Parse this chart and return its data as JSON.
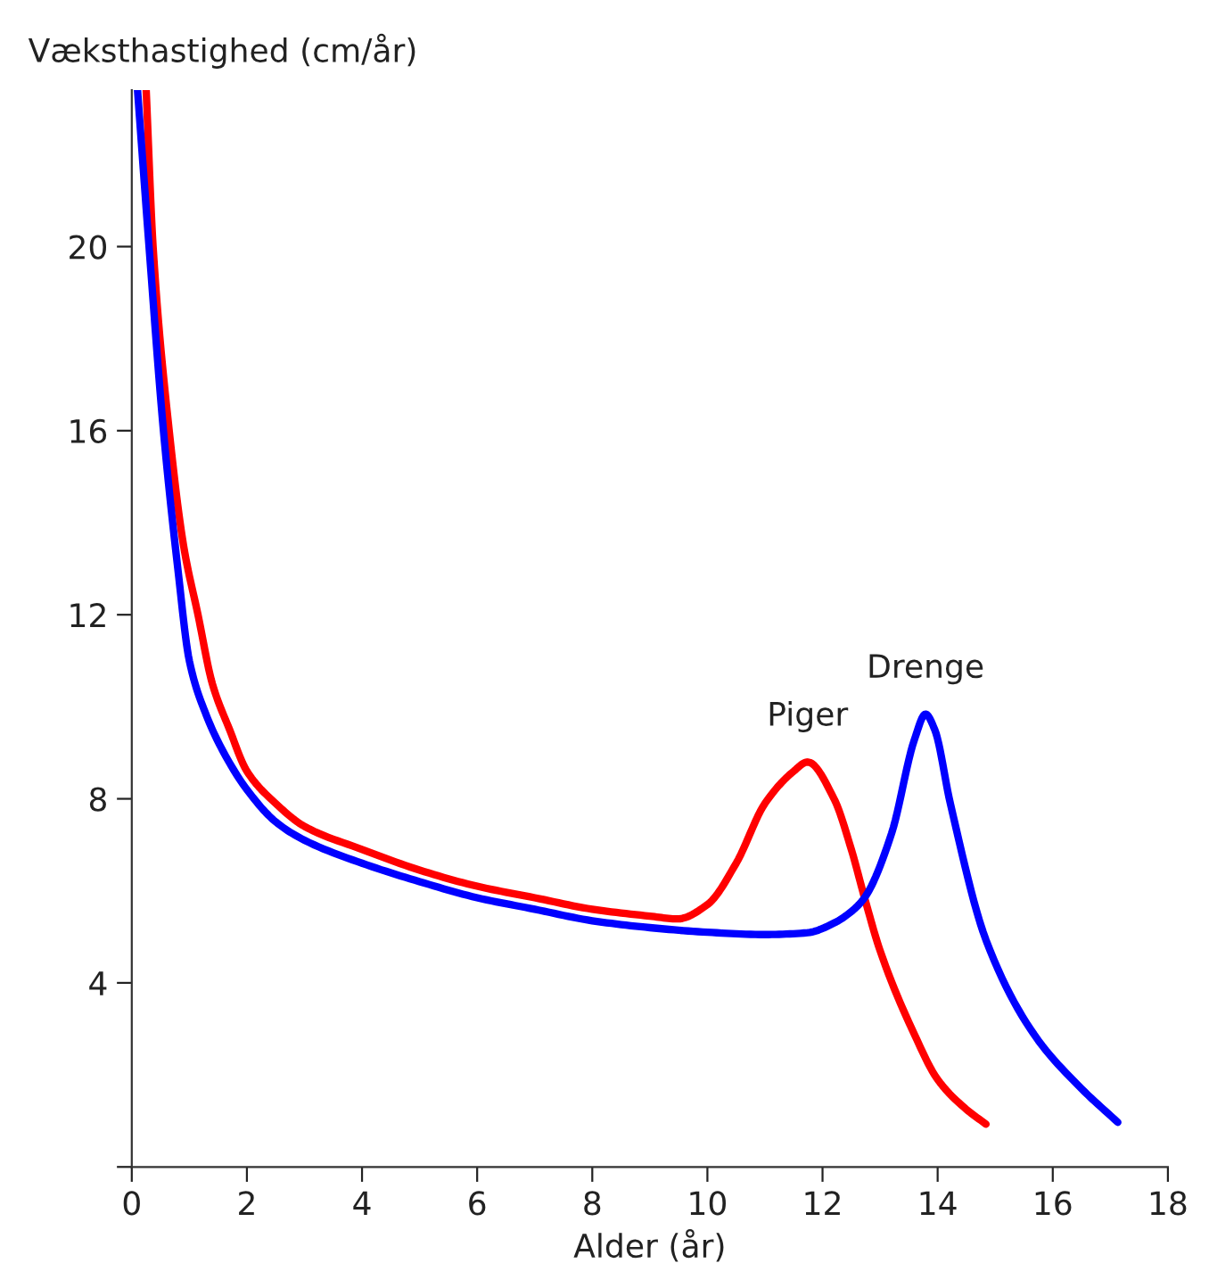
{
  "chart_data": {
    "type": "line",
    "xlabel": "Alder (år)",
    "ylabel": "Væksthastighed (cm/år)",
    "xlim": [
      0,
      18
    ],
    "xticks": [
      0,
      2,
      4,
      6,
      8,
      10,
      12,
      14,
      16,
      18
    ],
    "ylim": [
      0,
      23.4
    ],
    "yticks": [
      {
        "value": 0,
        "label": null
      },
      4,
      8,
      12,
      16,
      20
    ],
    "grid": false,
    "legend": false,
    "marker": "none",
    "line_style": "solid",
    "series": [
      {
        "name": "Piger",
        "color": "#ff0000",
        "x": [
          0.25,
          0.37,
          0.65,
          0.9,
          1.15,
          1.4,
          1.7,
          2,
          2.5,
          3,
          4,
          5,
          6,
          7,
          8,
          9,
          9.48,
          10,
          10.5,
          11,
          11.5,
          11.74,
          12.2,
          12.5,
          12.73,
          13.0,
          13.6,
          14,
          14.5,
          14.84
        ],
        "values": [
          23.4,
          20,
          16,
          13.5,
          12,
          10.5,
          9.5,
          8.6,
          7.9,
          7.4,
          6.9,
          6.45,
          6.1,
          5.85,
          5.6,
          5.45,
          5.39,
          5.7,
          6.6,
          7.9,
          8.6,
          8.8,
          8.0,
          6.9,
          5.85,
          4.7,
          2.87,
          1.9,
          1.25,
          0.93
        ]
      },
      {
        "name": "Drenge",
        "color": "#0000ff",
        "x": [
          0.1,
          0.3,
          0.55,
          0.8,
          1.0,
          1.3,
          1.6,
          2,
          2.5,
          3,
          4,
          5,
          6,
          7,
          8,
          9,
          10,
          11,
          11.74,
          12.2,
          12.5,
          12.73,
          13.2,
          13.6,
          13.79,
          13.95,
          14.22,
          14.84,
          15.68,
          16.5,
          17.13
        ],
        "values": [
          23.4,
          20,
          16,
          13,
          11,
          9.8,
          9,
          8.2,
          7.5,
          7.1,
          6.6,
          6.2,
          5.85,
          5.6,
          5.35,
          5.2,
          5.1,
          5.05,
          5.09,
          5.3,
          5.55,
          5.85,
          7.25,
          9.3,
          9.84,
          9.5,
          7.9,
          4.93,
          2.87,
          1.7,
          0.97
        ]
      }
    ]
  }
}
